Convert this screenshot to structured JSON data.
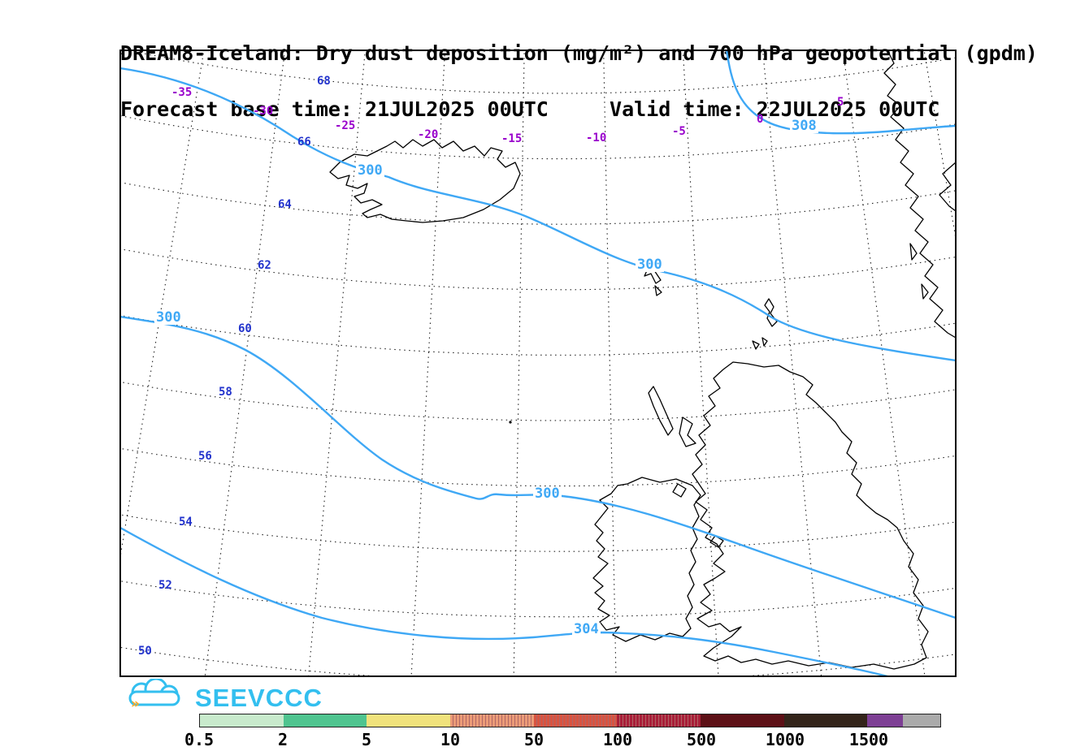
{
  "title": {
    "line1": "DREAM8-Iceland: Dry dust deposition (mg/m²) and 700 hPa geopotential (gpdm)",
    "line2": "Forecast base time: 21JUL2025 00UTC     Valid time: 22JUL2025 00UTC"
  },
  "map": {
    "lat_labels": [
      "68",
      "66",
      "64",
      "62",
      "60",
      "58",
      "56",
      "54",
      "52",
      "50"
    ],
    "lon_labels": [
      "-35",
      "-30",
      "-25",
      "-20",
      "-15",
      "-10",
      "-5",
      "0",
      "5"
    ],
    "contour_labels": [
      "300",
      "300",
      "300",
      "300",
      "304",
      "308"
    ],
    "colors": {
      "contour": "#3fa8f5",
      "lat_label": "#2233cc",
      "lon_label": "#9900cc",
      "coastline": "#000000"
    }
  },
  "logo": {
    "text": "SEEVCCC",
    "color": "#33bfef"
  },
  "colorbar": {
    "ticks": [
      "0.5",
      "2",
      "5",
      "10",
      "50",
      "100",
      "500",
      "1000",
      "1500"
    ],
    "segment_colors": [
      "#c8eacc",
      "#4fc48f",
      "#f0e27c",
      "#eb9b77",
      "#d85340",
      "#a81e38",
      "#5c1016",
      "#33241a",
      "#7d3f94",
      "#aaaaaa"
    ],
    "hatched": [
      false,
      false,
      false,
      true,
      true,
      true,
      false,
      false,
      false,
      false
    ]
  }
}
